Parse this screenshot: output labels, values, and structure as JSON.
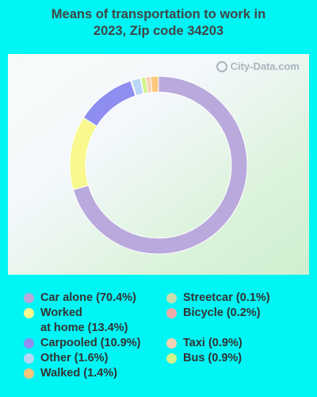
{
  "title": {
    "line1": "Means of transportation to work in",
    "line2": "2023, Zip code 34203"
  },
  "watermark": "City-Data.com",
  "chart_data": {
    "type": "pie",
    "title": "Means of transportation to work in 2023, Zip code 34203",
    "donut": true,
    "slices": [
      {
        "label": "Car alone",
        "value": 70.4,
        "color": "#b9a9dc",
        "legend": "Car alone (70.4%)"
      },
      {
        "label": "Worked at home",
        "value": 13.4,
        "color": "#f8f88e",
        "legend": "Worked\nat home (13.4%)"
      },
      {
        "label": "Carpooled",
        "value": 10.9,
        "color": "#8e8ef0",
        "legend": "Carpooled (10.9%)"
      },
      {
        "label": "Streetcar",
        "value": 0.1,
        "color": "#c8dcae",
        "legend": "Streetcar (0.1%)"
      },
      {
        "label": "Bicycle",
        "value": 0.2,
        "color": "#efaaaa",
        "legend": "Bicycle (0.2%)"
      },
      {
        "label": "Taxi",
        "value": 0.9,
        "color": "#f8d2b2",
        "legend": "Taxi (0.9%)"
      },
      {
        "label": "Other",
        "value": 1.6,
        "color": "#b8d6f6",
        "legend": "Other (1.6%)"
      },
      {
        "label": "Bus",
        "value": 0.9,
        "color": "#d2f28c",
        "legend": "Bus (0.9%)"
      },
      {
        "label": "Walked",
        "value": 1.4,
        "color": "#fbc77c",
        "legend": "Walked (1.4%)"
      }
    ],
    "legend_placement": "bottom"
  }
}
